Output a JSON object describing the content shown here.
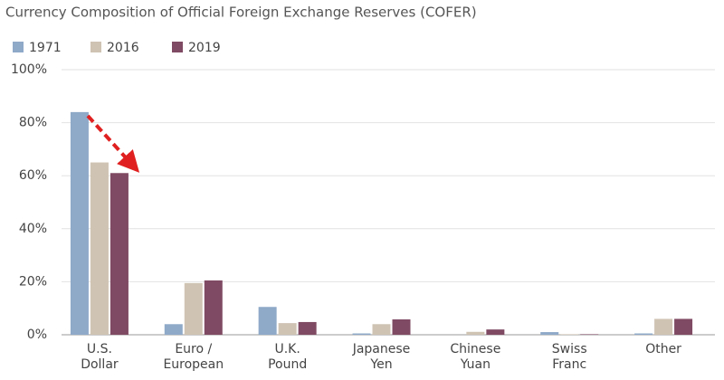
{
  "chart_data": {
    "type": "bar",
    "title": "Currency Composition of Official Foreign Exchange Reserves (COFER)",
    "categories": [
      [
        "U.S.",
        "Dollar"
      ],
      [
        "Euro /",
        "European"
      ],
      [
        "U.K.",
        "Pound"
      ],
      [
        "Japanese",
        "Yen"
      ],
      [
        "Chinese",
        "Yuan"
      ],
      [
        "Swiss",
        "Franc"
      ],
      [
        "Other"
      ]
    ],
    "series": [
      {
        "name": "1971",
        "color": "#8fa9c8",
        "values": [
          84,
          4,
          10.5,
          0.5,
          0,
          1,
          0.5
        ]
      },
      {
        "name": "2016",
        "color": "#cfc3b3",
        "values": [
          65,
          19.5,
          4.4,
          4,
          1.1,
          0.2,
          6
        ]
      },
      {
        "name": "2019",
        "color": "#7f4a63",
        "values": [
          61,
          20.5,
          4.8,
          5.8,
          2,
          0.2,
          6
        ]
      }
    ],
    "ylim": [
      0,
      100
    ],
    "yticks": [
      {
        "value": 0,
        "label": "0%"
      },
      {
        "value": 20,
        "label": "20%"
      },
      {
        "value": 40,
        "label": "40%"
      },
      {
        "value": 60,
        "label": "60%"
      },
      {
        "value": 80,
        "label": "80%"
      },
      {
        "value": 100,
        "label": "100%"
      }
    ],
    "grid": true,
    "legend": "top-left"
  }
}
